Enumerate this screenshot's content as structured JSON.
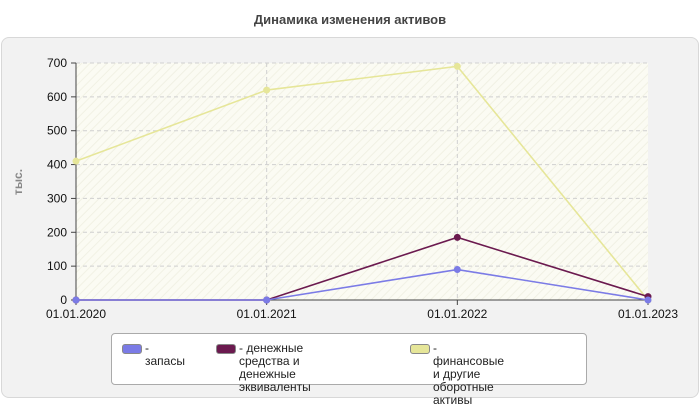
{
  "chart_data": {
    "type": "line",
    "title": "Динамика изменения активов",
    "xlabel": "",
    "ylabel": "тыс.",
    "x": [
      "01.01.2020",
      "01.01.2021",
      "01.01.2022",
      "01.01.2023"
    ],
    "yticks": [
      "0",
      "100",
      "200",
      "300",
      "400",
      "500",
      "600",
      "700"
    ],
    "ylim": [
      0,
      700
    ],
    "grid": true,
    "legend_position": "bottom",
    "series": [
      {
        "name": "- запасы",
        "values": [
          0,
          0,
          90,
          0
        ],
        "color": "#7b7be6"
      },
      {
        "name": "- денежные средства и\nденежные эквиваленты",
        "values": [
          0,
          0,
          185,
          10
        ],
        "color": "#6b1a4f"
      },
      {
        "name": "- финансовые и другие\nоборотные активы",
        "values": [
          410,
          620,
          690,
          0
        ],
        "color": "#e6e699"
      }
    ]
  }
}
